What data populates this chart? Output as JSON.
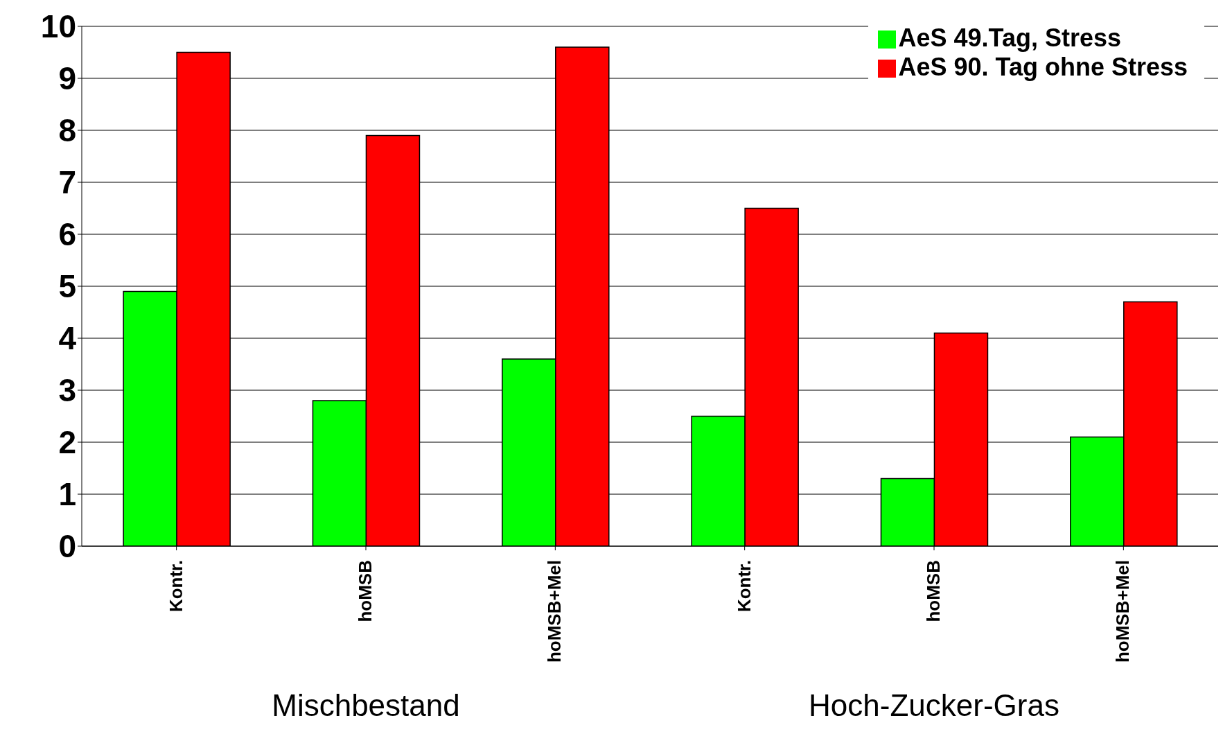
{
  "chart_data": {
    "type": "bar",
    "categories": [
      "Kontr.",
      "hoMSB",
      "hoMSB+Mel",
      "Kontr.",
      "hoMSB",
      "hoMSB+Mel"
    ],
    "series": [
      {
        "name": "AeS 49.Tag, Stress",
        "color": "#00ff00",
        "values": [
          4.9,
          2.8,
          3.6,
          2.5,
          1.3,
          2.1
        ]
      },
      {
        "name": "AeS 90. Tag ohne Stress",
        "color": "#ff0000",
        "values": [
          9.5,
          7.9,
          9.6,
          6.5,
          4.1,
          4.7
        ]
      }
    ],
    "annotations": [
      "Mischbestand",
      "Hoch-Zucker-Gras"
    ],
    "ylim": [
      0,
      10
    ],
    "yticks": [
      0,
      1,
      2,
      3,
      4,
      5,
      6,
      7,
      8,
      9,
      10
    ],
    "grid": "y",
    "legend": "top right"
  }
}
